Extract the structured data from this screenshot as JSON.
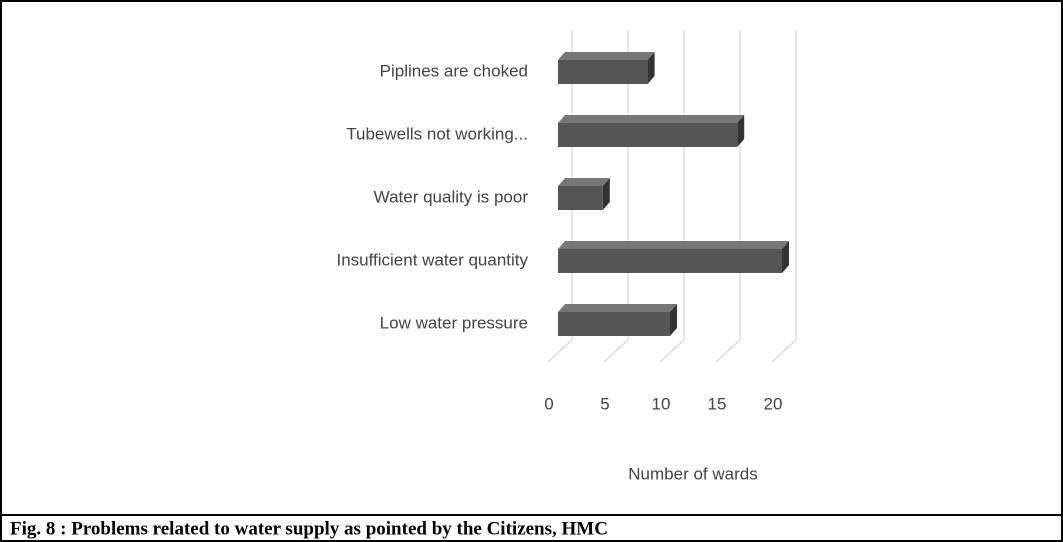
{
  "chart_data": {
    "type": "bar",
    "orientation": "horizontal",
    "caption": "Fig. 8 : Problems related to water supply as pointed by the Citizens, HMC",
    "categories": [
      "Piplines are choked",
      "Tubewells not working...",
      "Water quality is poor",
      "Insufficient water quantity",
      "Low water pressure"
    ],
    "values": [
      8,
      16,
      4,
      20,
      10
    ],
    "color": "#555555",
    "xlabel": "Number of wards",
    "xlim": [
      0,
      20
    ],
    "xticks": [
      0,
      5,
      10,
      15,
      20
    ],
    "grid": true
  }
}
